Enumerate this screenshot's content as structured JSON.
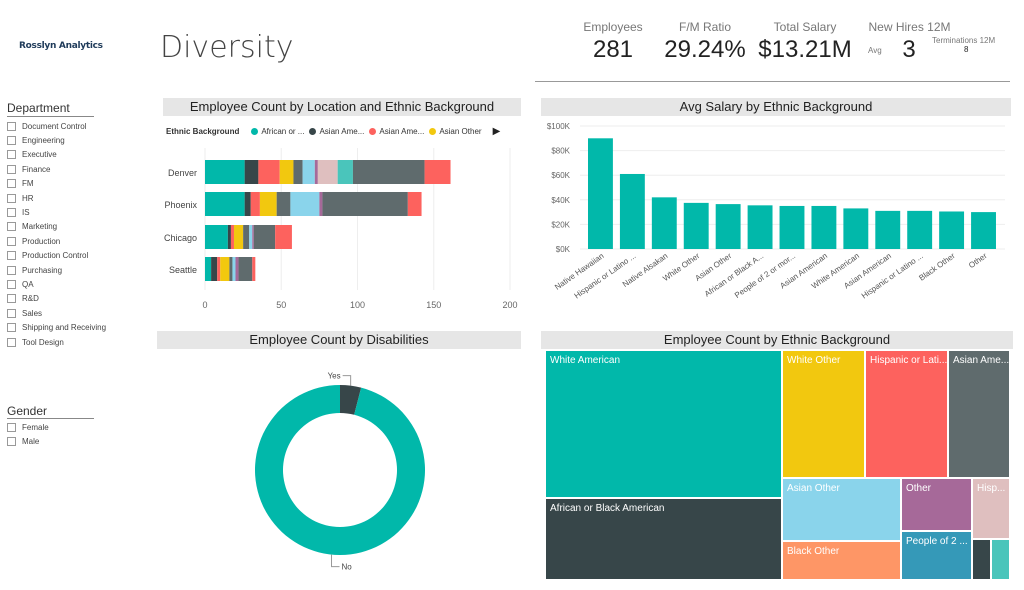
{
  "header": {
    "logo_text": "Rosslyn Analytics",
    "page_title": "Diversity"
  },
  "kpis": {
    "employees_label": "Employees",
    "employees_value": "281",
    "fm_ratio_label": "F/M Ratio",
    "fm_ratio_value": "29.24%",
    "total_salary_label": "Total Salary",
    "total_salary_value": "$13.21M",
    "new_hires_label": "New Hires 12M",
    "new_hires_value": "3",
    "new_hires_avg_label": "Avg",
    "terminations_label": "Terminations 12M",
    "terminations_value": "8"
  },
  "slicers": {
    "department_title": "Department",
    "departments": [
      "Document Control",
      "Engineering",
      "Executive",
      "Finance",
      "FM",
      "HR",
      "IS",
      "Marketing",
      "Production",
      "Production Control",
      "Purchasing",
      "QA",
      "R&D",
      "Sales",
      "Shipping and Receiving",
      "Tool Design"
    ],
    "gender_title": "Gender",
    "genders": [
      "Female",
      "Male"
    ]
  },
  "colors": {
    "teal": "#01b8aa",
    "dark": "#374649",
    "red": "#fd625e",
    "yellow": "#f2c80f",
    "gray": "#5f6b6d",
    "lightblue": "#8ad4eb",
    "orange": "#fe9666",
    "purple": "#a66999",
    "blue": "#3599b8",
    "pink": "#dfbfbf",
    "teal2": "#4ac5bb",
    "gray2": "#5f6b6d"
  },
  "chart_data": [
    {
      "type": "bar",
      "title": "Employee Count by Location and Ethnic Background",
      "legend_title": "Ethnic Background",
      "legend": [
        "African or ...",
        "Asian Ame...",
        "Asian Ame...",
        "Asian Other"
      ],
      "categories": [
        "Denver",
        "Phoenix",
        "Chicago",
        "Seattle"
      ],
      "xlim": [
        0,
        200
      ],
      "xticks": [
        0,
        50,
        100,
        150,
        200
      ],
      "segment_colors": [
        "#01b8aa",
        "#374649",
        "#fd625e",
        "#f2c80f",
        "#5f6b6d",
        "#8ad4eb",
        "#a66999",
        "#dfbfbf",
        "#4ac5bb",
        "#5f6b6d",
        "#fd625e"
      ],
      "series_values": [
        [
          26,
          9,
          14,
          9,
          6,
          8,
          2,
          13,
          10,
          47,
          17
        ],
        [
          26,
          4,
          6,
          11,
          9,
          19,
          2,
          0,
          0,
          56,
          9
        ],
        [
          15,
          2,
          2,
          6,
          4,
          2,
          1,
          0,
          0,
          14,
          11
        ],
        [
          4,
          4,
          2,
          6,
          2,
          2,
          2,
          0,
          0,
          9,
          2
        ]
      ]
    },
    {
      "type": "bar",
      "title": "Avg Salary by Ethnic Background",
      "categories": [
        "Native Hawaiian",
        "Hispanic or Latino ...",
        "Native Alsakan",
        "White Other",
        "Asian Other",
        "African or Black A...",
        "People of 2 or mor...",
        "Asian American",
        "White American",
        "Asian American",
        "Hispanic or Latino ...",
        "Black Other",
        "Other"
      ],
      "values": [
        90000,
        61000,
        42000,
        37500,
        36500,
        35500,
        35000,
        35000,
        33000,
        31000,
        31000,
        30500,
        30000
      ],
      "ylim": [
        0,
        100000
      ],
      "yticks": [
        "$0K",
        "$20K",
        "$40K",
        "$60K",
        "$80K",
        "$100K"
      ],
      "color": "#01b8aa"
    },
    {
      "type": "pie",
      "title": "Employee Count by Disabilities",
      "labels": [
        "Yes",
        "No"
      ],
      "values": [
        4,
        96
      ],
      "colors": [
        "#374649",
        "#01b8aa"
      ]
    },
    {
      "type": "treemap",
      "title": "Employee Count by Ethnic Background",
      "labels": [
        "White American",
        "African or Black American",
        "White Other",
        "Hispanic or Lati...",
        "Asian Ame...",
        "Asian Other",
        "Black Other",
        "Other",
        "People of 2 ...",
        "Hisp..."
      ]
    }
  ]
}
